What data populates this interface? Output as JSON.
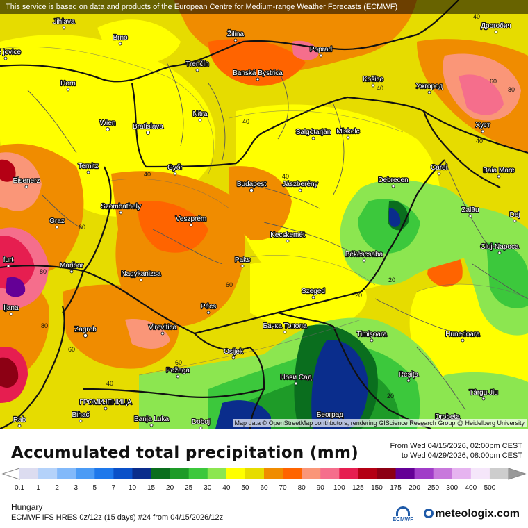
{
  "notice": "This service is based on data and products of the European Centre for Medium-range Weather Forecasts (ECMWF)",
  "attribution": "Map data © OpenStreetMap contributors, rendering GIScience Research Group @ Heidelberg University",
  "cities": [
    {
      "name": "Jihlava",
      "kind": "city"
    },
    {
      "name": "Brno",
      "kind": "city"
    },
    {
      "name": "Žilina",
      "kind": "city"
    },
    {
      "name": "Poprad",
      "kind": "city"
    },
    {
      "name": "Дрогобич",
      "kind": "city"
    },
    {
      "name": "Trenčín",
      "kind": "city"
    },
    {
      "name": "Banská Bystrica",
      "kind": "city"
    },
    {
      "name": "Košice",
      "kind": "city"
    },
    {
      "name": "Ужгород",
      "kind": "city"
    },
    {
      "name": "Horn",
      "kind": "city"
    },
    {
      "name": "Nitra",
      "kind": "city"
    },
    {
      "name": "Wien",
      "kind": "capital"
    },
    {
      "name": "Bratislava",
      "kind": "capital"
    },
    {
      "name": "Salgótarján",
      "kind": "city"
    },
    {
      "name": "Miskolc",
      "kind": "city"
    },
    {
      "name": "Хуст",
      "kind": "city"
    },
    {
      "name": "Ternitz",
      "kind": "city"
    },
    {
      "name": "Győr",
      "kind": "city"
    },
    {
      "name": "Carei",
      "kind": "city"
    },
    {
      "name": "Baia Mare",
      "kind": "city"
    },
    {
      "name": "Eisenerz",
      "kind": "city"
    },
    {
      "name": "Budapest",
      "kind": "capital"
    },
    {
      "name": "Jászberény",
      "kind": "city"
    },
    {
      "name": "Debrecen",
      "kind": "city"
    },
    {
      "name": "Szombathely",
      "kind": "city"
    },
    {
      "name": "Zalău",
      "kind": "city"
    },
    {
      "name": "Graz",
      "kind": "city"
    },
    {
      "name": "Veszprém",
      "kind": "city"
    },
    {
      "name": "Kecskemét",
      "kind": "city"
    },
    {
      "name": "Cluj-Napoca",
      "kind": "city"
    },
    {
      "name": "Paks",
      "kind": "city"
    },
    {
      "name": "Békéscsaba",
      "kind": "city"
    },
    {
      "name": "Maribor",
      "kind": "city"
    },
    {
      "name": "Nagykanizsa",
      "kind": "city"
    },
    {
      "name": "Szeged",
      "kind": "city"
    },
    {
      "name": "Pécs",
      "kind": "city"
    },
    {
      "name": "Бачка Топола",
      "kind": "city"
    },
    {
      "name": "Zagreb",
      "kind": "capital"
    },
    {
      "name": "Virovitica",
      "kind": "city"
    },
    {
      "name": "Timișoara",
      "kind": "city"
    },
    {
      "name": "Hunedoara",
      "kind": "city"
    },
    {
      "name": "Osijek",
      "kind": "city"
    },
    {
      "name": "Požega",
      "kind": "city"
    },
    {
      "name": "Нови Сад",
      "kind": "city"
    },
    {
      "name": "Reșița",
      "kind": "city"
    },
    {
      "name": "Târgu Jiu",
      "kind": "city"
    },
    {
      "name": "Bihać",
      "kind": "city"
    },
    {
      "name": "ГРОМИЈЕНИЦА",
      "kind": "city"
    },
    {
      "name": "Banja Luka",
      "kind": "city"
    },
    {
      "name": "Doboj",
      "kind": "city"
    },
    {
      "name": "Београд",
      "kind": "capital"
    },
    {
      "name": "Drobeta",
      "kind": "city"
    },
    {
      "name": "ljana",
      "kind": "city"
    },
    {
      "name": "ské jovice",
      "kind": "city"
    },
    {
      "name": "furt",
      "kind": "city"
    },
    {
      "name": "Dej",
      "kind": "city"
    },
    {
      "name": "Rab",
      "kind": "city"
    }
  ],
  "contour_labels": [
    "40",
    "40",
    "40",
    "40",
    "40",
    "60",
    "60",
    "60",
    "80",
    "80",
    "40",
    "60",
    "20",
    "20",
    "60",
    "40",
    "20",
    "80"
  ],
  "title": "Accumulated total precipitation (mm)",
  "period_from": "From Wed 04/15/2026, 02:00pm CEST",
  "period_to": "to Wed 04/29/2026, 08:00pm CEST",
  "scale": {
    "ticks": [
      "0.1",
      "1",
      "2",
      "3",
      "5",
      "7",
      "10",
      "15",
      "20",
      "25",
      "30",
      "40",
      "50",
      "60",
      "70",
      "80",
      "90",
      "100",
      "125",
      "150",
      "175",
      "200",
      "250",
      "300",
      "400",
      "500"
    ],
    "colors": [
      "#dcdcf0",
      "#b4d2fa",
      "#82b9fa",
      "#4b9bf5",
      "#1e78eb",
      "#0a50c8",
      "#0a2d8c",
      "#0a6e1e",
      "#1e9b28",
      "#3cc83c",
      "#8ce650",
      "#ffff00",
      "#e6dc00",
      "#f08c00",
      "#ff6400",
      "#fa9678",
      "#f56e8c",
      "#e61e50",
      "#b40014",
      "#8c0014",
      "#640096",
      "#a03cc8",
      "#c878dc",
      "#e6b4f0",
      "#f5e6fa",
      "#cdcdcd"
    ]
  },
  "region": "Hungary",
  "model": "ECMWF IFS HRES 0z/12z (15 days) #24 from 04/15/2026/12z",
  "ecmwf_logo": "ECMWF",
  "brand": "meteologix.com"
}
